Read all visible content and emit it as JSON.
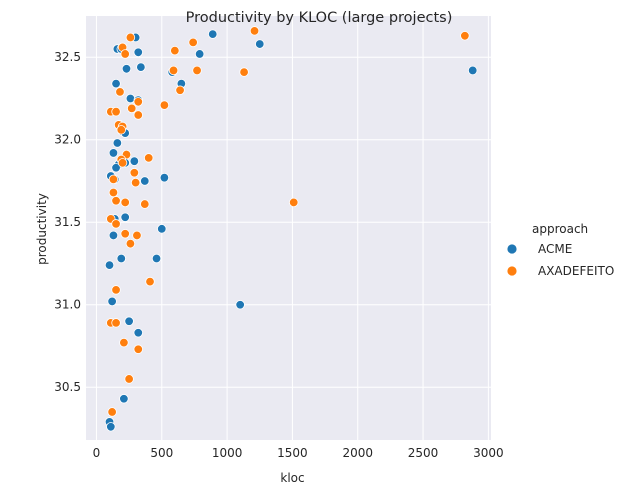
{
  "chart_data": {
    "type": "scatter",
    "title": "Productivity by KLOC (large projects)",
    "xlabel": "kloc",
    "ylabel": "productivity",
    "xlim": [
      -80,
      3020
    ],
    "ylim": [
      30.18,
      32.75
    ],
    "xticks": [
      0,
      500,
      1000,
      1500,
      2000,
      2500,
      3000
    ],
    "yticks": [
      30.5,
      31.0,
      31.5,
      32.0,
      32.5
    ],
    "ytick_labels": [
      "30.5",
      "31.0",
      "31.5",
      "32.0",
      "32.5"
    ],
    "grid": true,
    "legend_title": "approach",
    "legend_position": "right",
    "series": [
      {
        "name": "ACME",
        "color": "#1f77b4",
        "points": [
          [
            160,
            32.55
          ],
          [
            190,
            32.55
          ],
          [
            300,
            32.62
          ],
          [
            320,
            32.53
          ],
          [
            230,
            32.43
          ],
          [
            340,
            32.44
          ],
          [
            890,
            32.64
          ],
          [
            790,
            32.52
          ],
          [
            1250,
            32.58
          ],
          [
            2880,
            32.42
          ],
          [
            650,
            32.34
          ],
          [
            580,
            32.41
          ],
          [
            150,
            32.34
          ],
          [
            260,
            32.25
          ],
          [
            320,
            32.24
          ],
          [
            180,
            32.09
          ],
          [
            200,
            32.05
          ],
          [
            220,
            32.04
          ],
          [
            160,
            31.98
          ],
          [
            130,
            31.92
          ],
          [
            220,
            31.86
          ],
          [
            170,
            31.85
          ],
          [
            150,
            31.83
          ],
          [
            290,
            31.87
          ],
          [
            110,
            31.78
          ],
          [
            140,
            31.76
          ],
          [
            370,
            31.75
          ],
          [
            520,
            31.77
          ],
          [
            140,
            31.52
          ],
          [
            220,
            31.53
          ],
          [
            130,
            31.42
          ],
          [
            500,
            31.46
          ],
          [
            190,
            31.28
          ],
          [
            460,
            31.28
          ],
          [
            100,
            31.24
          ],
          [
            120,
            31.02
          ],
          [
            1100,
            31.0
          ],
          [
            250,
            30.9
          ],
          [
            320,
            30.83
          ],
          [
            210,
            30.43
          ],
          [
            100,
            30.29
          ],
          [
            110,
            30.26
          ]
        ]
      },
      {
        "name": "AXADEFEITO",
        "color": "#ff7f0e",
        "points": [
          [
            260,
            32.62
          ],
          [
            200,
            32.56
          ],
          [
            220,
            32.52
          ],
          [
            600,
            32.54
          ],
          [
            1210,
            32.66
          ],
          [
            2820,
            32.63
          ],
          [
            740,
            32.59
          ],
          [
            590,
            32.42
          ],
          [
            770,
            32.42
          ],
          [
            1130,
            32.41
          ],
          [
            640,
            32.3
          ],
          [
            180,
            32.29
          ],
          [
            320,
            32.23
          ],
          [
            520,
            32.21
          ],
          [
            270,
            32.19
          ],
          [
            110,
            32.17
          ],
          [
            150,
            32.17
          ],
          [
            320,
            32.15
          ],
          [
            170,
            32.09
          ],
          [
            200,
            32.08
          ],
          [
            190,
            32.06
          ],
          [
            230,
            31.91
          ],
          [
            400,
            31.89
          ],
          [
            190,
            31.88
          ],
          [
            200,
            31.86
          ],
          [
            290,
            31.8
          ],
          [
            130,
            31.76
          ],
          [
            300,
            31.74
          ],
          [
            130,
            31.68
          ],
          [
            150,
            31.63
          ],
          [
            220,
            31.62
          ],
          [
            370,
            31.61
          ],
          [
            1510,
            31.62
          ],
          [
            110,
            31.52
          ],
          [
            150,
            31.49
          ],
          [
            220,
            31.43
          ],
          [
            310,
            31.42
          ],
          [
            260,
            31.37
          ],
          [
            410,
            31.14
          ],
          [
            150,
            31.09
          ],
          [
            110,
            30.89
          ],
          [
            150,
            30.89
          ],
          [
            210,
            30.77
          ],
          [
            320,
            30.73
          ],
          [
            250,
            30.55
          ],
          [
            120,
            30.35
          ]
        ]
      }
    ]
  }
}
